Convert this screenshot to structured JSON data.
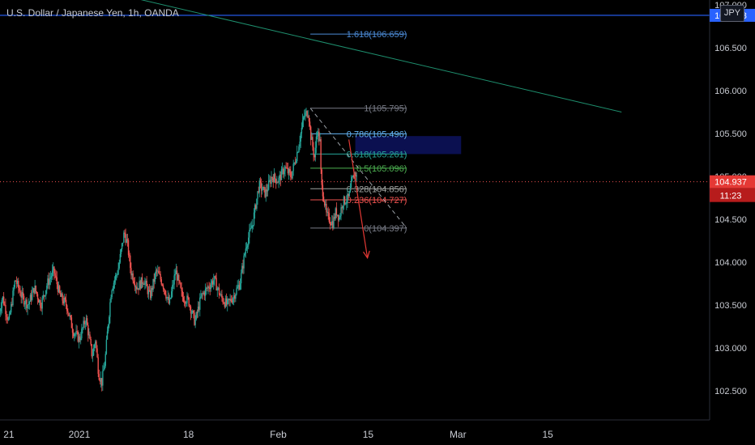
{
  "chart_data": {
    "type": "candlestick",
    "title": "U.S. Dollar / Japanese Yen, 1h, OANDA",
    "currency": "JPY",
    "ylim": [
      102.33,
      107.2
    ],
    "y_ticks": [
      "107.000",
      "106.500",
      "106.000",
      "105.500",
      "105.000",
      "104.500",
      "104.000",
      "103.500",
      "103.000",
      "102.500"
    ],
    "x_ticks": [
      {
        "label": "21",
        "day": -11
      },
      {
        "label": "2021",
        "day": 0
      },
      {
        "label": "18",
        "day": 17
      },
      {
        "label": "Feb",
        "day": 31
      },
      {
        "label": "15",
        "day": 45
      },
      {
        "label": "Mar",
        "day": 59
      },
      {
        "label": "15",
        "day": 73
      }
    ],
    "price_path": [
      [
        -12.5,
        103.4
      ],
      [
        -12,
        103.6
      ],
      [
        -11,
        103.3
      ],
      [
        -10,
        103.8
      ],
      [
        -9,
        103.6
      ],
      [
        -8,
        103.5
      ],
      [
        -7,
        103.7
      ],
      [
        -6,
        103.5
      ],
      [
        -5,
        103.75
      ],
      [
        -4,
        103.9
      ],
      [
        -3,
        103.6
      ],
      [
        -2,
        103.5
      ],
      [
        -1,
        103.2
      ],
      [
        0,
        103.1
      ],
      [
        1,
        103.35
      ],
      [
        2,
        102.9
      ],
      [
        2.5,
        103.1
      ],
      [
        3,
        102.7
      ],
      [
        3.5,
        102.6
      ],
      [
        4,
        102.85
      ],
      [
        4.5,
        103.3
      ],
      [
        5,
        103.7
      ],
      [
        6,
        103.9
      ],
      [
        7,
        104.35
      ],
      [
        7.5,
        104.2
      ],
      [
        8,
        103.9
      ],
      [
        9,
        103.7
      ],
      [
        10,
        103.8
      ],
      [
        11,
        103.6
      ],
      [
        12,
        103.9
      ],
      [
        13,
        103.75
      ],
      [
        14,
        103.5
      ],
      [
        15,
        103.9
      ],
      [
        16,
        103.6
      ],
      [
        17,
        103.55
      ],
      [
        18,
        103.3
      ],
      [
        19,
        103.6
      ],
      [
        20,
        103.7
      ],
      [
        21,
        103.8
      ],
      [
        22,
        103.6
      ],
      [
        23,
        103.5
      ],
      [
        24,
        103.6
      ],
      [
        25,
        103.75
      ],
      [
        26,
        104.2
      ],
      [
        27,
        104.45
      ],
      [
        28,
        104.9
      ],
      [
        29,
        104.8
      ],
      [
        30,
        105.0
      ],
      [
        31,
        104.95
      ],
      [
        32,
        105.1
      ],
      [
        33,
        105.0
      ],
      [
        34,
        105.3
      ],
      [
        35,
        105.7
      ],
      [
        35.7,
        105.76
      ],
      [
        36,
        105.5
      ],
      [
        36.7,
        105.2
      ],
      [
        37,
        105.55
      ],
      [
        37.5,
        105.4
      ],
      [
        37.7,
        104.9
      ],
      [
        38,
        104.8
      ],
      [
        38.5,
        104.55
      ],
      [
        39,
        104.5
      ],
      [
        39.5,
        104.45
      ],
      [
        40,
        104.6
      ],
      [
        40.5,
        104.52
      ],
      [
        41,
        104.7
      ],
      [
        42,
        104.75
      ],
      [
        42.5,
        104.95
      ],
      [
        43,
        105.05
      ],
      [
        43.3,
        104.96
      ]
    ],
    "last_price": "104.937",
    "countdown": "11:23",
    "fibonacci": {
      "start_day": 36,
      "end_day": 51,
      "levels": [
        {
          "label": "1.618(106.659)",
          "price": 106.659,
          "color": "#4c8bd6"
        },
        {
          "label": "1(105.795)",
          "price": 105.795,
          "color": "#787b86"
        },
        {
          "label": "0.786(105.496)",
          "price": 105.496,
          "color": "#64b5f6"
        },
        {
          "label": "0.618(105.261)",
          "price": 105.261,
          "color": "#26a69a"
        },
        {
          "label": "0.5(105.096)",
          "price": 105.096,
          "color": "#4caf50"
        },
        {
          "label": "0.328(104.856)",
          "price": 104.856,
          "color": "#9fa3a0"
        },
        {
          "label": "0.236(104.727)",
          "price": 104.727,
          "color": "#f05350"
        },
        {
          "label": "0(104.397)",
          "price": 104.397,
          "color": "#787b86"
        }
      ]
    },
    "hidden_axis_label": "106.878",
    "resistance_price": 106.878,
    "trend_line": {
      "from": [
        -9.8,
        107.4
      ],
      "to": [
        84.5,
        105.75
      ]
    },
    "dashed_line": {
      "from": [
        36,
        105.795
      ],
      "to": [
        51,
        104.397
      ]
    },
    "arrow": {
      "from": [
        42,
        105.43
      ],
      "to": [
        44.9,
        104.05
      ]
    },
    "zone": {
      "from_day": 43,
      "to_day": 59.5,
      "top": 105.47,
      "bottom": 105.26,
      "color": "#0b1050"
    }
  }
}
